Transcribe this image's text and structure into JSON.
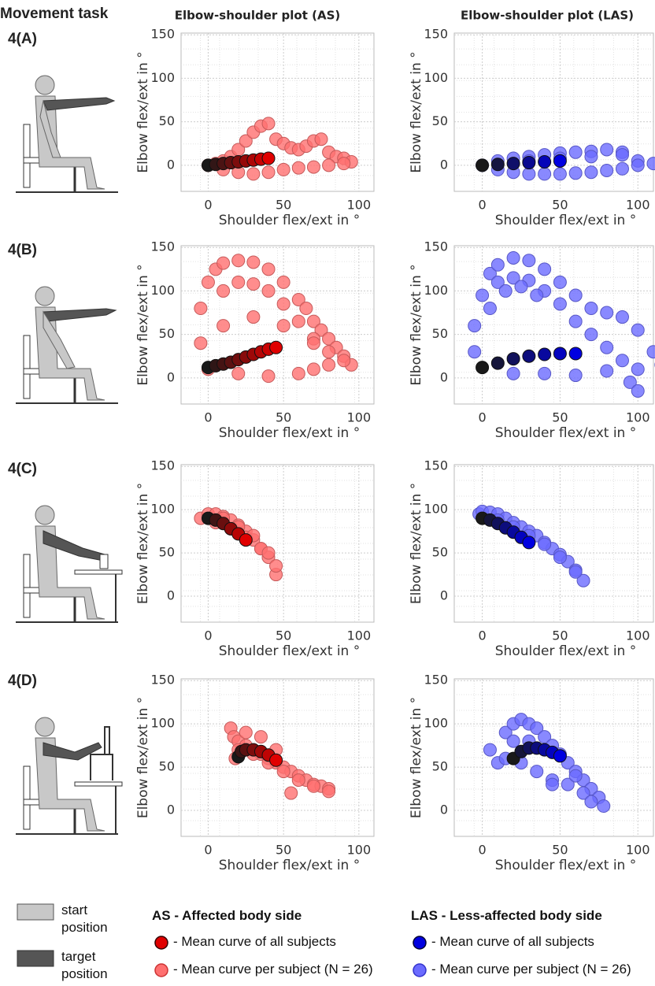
{
  "figure": {
    "movement_task_label": "Movement task",
    "column_titles": [
      "Elbow-shoulder plot (AS)",
      "Elbow-shoulder plot (LAS)"
    ],
    "row_labels": [
      "4(A)",
      "4(B)",
      "4(C)",
      "4(D)"
    ],
    "legend": {
      "start": "start position",
      "target": "target position",
      "as_title": "AS - Affected body side",
      "as_mean": "- Mean curve of all subjects",
      "as_subject": "- Mean curve per subject (N = 26)",
      "las_title": "LAS - Less-affected body side",
      "las_mean": "- Mean curve of all subjects",
      "las_subject": "- Mean curve per subject (N = 26)"
    }
  },
  "chart_data": [
    {
      "type": "scatter",
      "xlabel": "Shoulder flex/ext in °",
      "ylabel": "Elbow flex/ext in °",
      "xlim": [
        -18,
        110
      ],
      "ylim": [
        -30,
        152
      ],
      "xticks": [
        0,
        50,
        100
      ],
      "yticks": [
        0,
        50,
        100,
        150
      ],
      "grid": true,
      "series": [
        {
          "color": "#ff7070",
          "x": [
            0,
            5,
            10,
            15,
            20,
            25,
            30,
            35,
            40,
            45,
            50,
            55,
            60,
            65,
            70,
            75,
            80,
            85,
            90,
            95,
            10,
            20,
            30,
            40,
            50,
            60,
            70,
            80,
            90
          ],
          "values": [
            0,
            2,
            5,
            10,
            18,
            28,
            38,
            45,
            48,
            30,
            25,
            20,
            18,
            22,
            28,
            30,
            15,
            10,
            8,
            4,
            -5,
            -8,
            -10,
            -8,
            -5,
            -3,
            -2,
            0,
            2
          ]
        },
        {
          "color": "#e00000",
          "x": [
            0,
            5,
            10,
            15,
            20,
            25,
            30,
            35,
            40
          ],
          "values": [
            0,
            1,
            2,
            3,
            4,
            5,
            6,
            7,
            8
          ]
        }
      ]
    },
    {
      "type": "scatter",
      "xlabel": "Shoulder flex/ext in °",
      "ylabel": "Elbow flex/ext in °",
      "xlim": [
        -18,
        110
      ],
      "ylim": [
        -30,
        152
      ],
      "xticks": [
        0,
        50,
        100
      ],
      "yticks": [
        0,
        50,
        100,
        150
      ],
      "grid": true,
      "series": [
        {
          "color": "#6b6bff",
          "x": [
            0,
            10,
            20,
            30,
            40,
            50,
            60,
            70,
            80,
            90,
            100,
            110,
            10,
            20,
            30,
            40,
            50,
            60,
            70,
            80,
            90,
            100,
            30,
            50,
            70,
            90
          ],
          "values": [
            0,
            5,
            8,
            10,
            12,
            14,
            15,
            16,
            18,
            15,
            5,
            2,
            -5,
            -8,
            -10,
            -10,
            -10,
            -9,
            -8,
            -6,
            -4,
            0,
            5,
            8,
            10,
            12
          ]
        },
        {
          "color": "#0000e0",
          "x": [
            0,
            10,
            20,
            30,
            40,
            50
          ],
          "values": [
            0,
            1,
            2,
            3,
            4,
            5
          ]
        }
      ]
    },
    {
      "type": "scatter",
      "xlabel": "Shoulder flex/ext in °",
      "ylabel": "Elbow flex/ext in °",
      "xlim": [
        -18,
        110
      ],
      "ylim": [
        -30,
        152
      ],
      "xticks": [
        0,
        50,
        100
      ],
      "yticks": [
        0,
        50,
        100,
        150
      ],
      "grid": true,
      "series": [
        {
          "color": "#ff7070",
          "x": [
            0,
            -5,
            -5,
            0,
            5,
            10,
            20,
            30,
            40,
            50,
            60,
            65,
            70,
            75,
            80,
            85,
            90,
            95,
            10,
            20,
            30,
            40,
            50,
            60,
            70,
            80,
            90,
            20,
            40,
            60,
            70,
            80,
            10,
            30,
            50,
            70
          ],
          "values": [
            10,
            40,
            80,
            110,
            125,
            132,
            135,
            133,
            125,
            110,
            90,
            80,
            65,
            55,
            45,
            35,
            25,
            15,
            100,
            110,
            108,
            100,
            85,
            65,
            45,
            30,
            20,
            5,
            2,
            5,
            10,
            15,
            60,
            70,
            60,
            40
          ]
        },
        {
          "color": "#e00000",
          "x": [
            0,
            5,
            10,
            15,
            20,
            25,
            30,
            35,
            40,
            45
          ],
          "values": [
            12,
            14,
            16,
            18,
            21,
            24,
            27,
            30,
            33,
            35
          ]
        }
      ]
    },
    {
      "type": "scatter",
      "xlabel": "Shoulder flex/ext in °",
      "ylabel": "Elbow flex/ext in °",
      "xlim": [
        -18,
        110
      ],
      "ylim": [
        -30,
        152
      ],
      "xticks": [
        0,
        50,
        100
      ],
      "yticks": [
        0,
        50,
        100,
        150
      ],
      "grid": true,
      "series": [
        {
          "color": "#6b6bff",
          "x": [
            -5,
            0,
            5,
            10,
            20,
            30,
            40,
            50,
            60,
            70,
            80,
            90,
            100,
            110,
            115,
            10,
            20,
            30,
            40,
            50,
            60,
            70,
            80,
            90,
            100,
            20,
            40,
            60,
            80,
            95,
            100,
            -5,
            5,
            15,
            25,
            35
          ],
          "values": [
            60,
            95,
            120,
            130,
            138,
            135,
            125,
            110,
            95,
            80,
            75,
            70,
            55,
            30,
            15,
            110,
            115,
            112,
            100,
            85,
            65,
            50,
            35,
            20,
            10,
            5,
            5,
            3,
            8,
            -5,
            -15,
            30,
            80,
            100,
            105,
            95
          ]
        },
        {
          "color": "#0000e0",
          "x": [
            0,
            10,
            20,
            30,
            40,
            50,
            60
          ],
          "values": [
            12,
            17,
            22,
            25,
            27,
            28,
            28
          ]
        }
      ]
    },
    {
      "type": "scatter",
      "xlabel": "Shoulder flex/ext in °",
      "ylabel": "Elbow flex/ext in °",
      "xlim": [
        -18,
        110
      ],
      "ylim": [
        -30,
        152
      ],
      "xticks": [
        0,
        50,
        100
      ],
      "yticks": [
        0,
        50,
        100,
        150
      ],
      "grid": true,
      "series": [
        {
          "color": "#ff7070",
          "x": [
            -5,
            0,
            5,
            10,
            15,
            20,
            25,
            30,
            35,
            40,
            45,
            5,
            15,
            25,
            35,
            45,
            10,
            20,
            30,
            40
          ],
          "values": [
            90,
            95,
            95,
            92,
            88,
            82,
            75,
            65,
            55,
            45,
            25,
            85,
            78,
            68,
            55,
            35,
            90,
            80,
            70,
            50
          ]
        },
        {
          "color": "#e00000",
          "x": [
            0,
            5,
            10,
            15,
            20,
            25
          ],
          "values": [
            90,
            88,
            84,
            78,
            72,
            65
          ]
        }
      ]
    },
    {
      "type": "scatter",
      "xlabel": "Shoulder flex/ext in °",
      "ylabel": "Elbow flex/ext in °",
      "xlim": [
        -18,
        110
      ],
      "ylim": [
        -30,
        152
      ],
      "xticks": [
        0,
        50,
        100
      ],
      "yticks": [
        0,
        50,
        100,
        150
      ],
      "grid": true,
      "series": [
        {
          "color": "#6b6bff",
          "x": [
            -2,
            0,
            5,
            10,
            15,
            20,
            25,
            30,
            35,
            40,
            45,
            50,
            55,
            60,
            65,
            10,
            20,
            30,
            40,
            50,
            60
          ],
          "values": [
            95,
            98,
            97,
            95,
            90,
            85,
            80,
            75,
            70,
            62,
            55,
            48,
            40,
            30,
            18,
            88,
            80,
            70,
            60,
            45,
            28
          ]
        },
        {
          "color": "#0000e0",
          "x": [
            0,
            5,
            10,
            15,
            20,
            25,
            30
          ],
          "values": [
            90,
            88,
            84,
            79,
            74,
            68,
            62
          ]
        }
      ]
    },
    {
      "type": "scatter",
      "xlabel": "Shoulder flex/ext in °",
      "ylabel": "Elbow flex/ext in °",
      "xlim": [
        -18,
        110
      ],
      "ylim": [
        -30,
        152
      ],
      "xticks": [
        0,
        50,
        100
      ],
      "yticks": [
        0,
        50,
        100,
        150
      ],
      "grid": true,
      "series": [
        {
          "color": "#ff7070",
          "x": [
            15,
            17,
            20,
            25,
            30,
            35,
            40,
            45,
            50,
            55,
            60,
            65,
            70,
            75,
            80,
            20,
            30,
            40,
            50,
            60,
            70,
            80,
            18,
            25,
            35,
            45,
            55
          ],
          "values": [
            95,
            85,
            80,
            75,
            70,
            65,
            60,
            55,
            50,
            45,
            40,
            35,
            30,
            28,
            25,
            70,
            65,
            55,
            45,
            35,
            28,
            22,
            60,
            90,
            85,
            70,
            20
          ]
        },
        {
          "color": "#e00000",
          "x": [
            20,
            22,
            25,
            30,
            35,
            40,
            45
          ],
          "values": [
            62,
            68,
            70,
            70,
            68,
            64,
            58
          ]
        }
      ]
    },
    {
      "type": "scatter",
      "xlabel": "Shoulder flex/ext in °",
      "ylabel": "Elbow flex/ext in °",
      "xlim": [
        -18,
        110
      ],
      "ylim": [
        -30,
        152
      ],
      "xticks": [
        0,
        50,
        100
      ],
      "yticks": [
        0,
        50,
        100,
        150
      ],
      "grid": true,
      "series": [
        {
          "color": "#6b6bff",
          "x": [
            10,
            15,
            20,
            25,
            30,
            35,
            40,
            45,
            50,
            55,
            60,
            65,
            70,
            75,
            78,
            5,
            15,
            25,
            35,
            45,
            55,
            65,
            70,
            20,
            30,
            45,
            60
          ],
          "values": [
            55,
            90,
            100,
            105,
            100,
            95,
            85,
            75,
            65,
            55,
            45,
            35,
            25,
            15,
            5,
            70,
            60,
            55,
            45,
            35,
            30,
            20,
            10,
            80,
            80,
            30,
            40
          ]
        },
        {
          "color": "#0000e0",
          "x": [
            20,
            25,
            30,
            35,
            40,
            45,
            50
          ],
          "values": [
            60,
            68,
            72,
            72,
            70,
            67,
            63
          ]
        }
      ]
    }
  ]
}
